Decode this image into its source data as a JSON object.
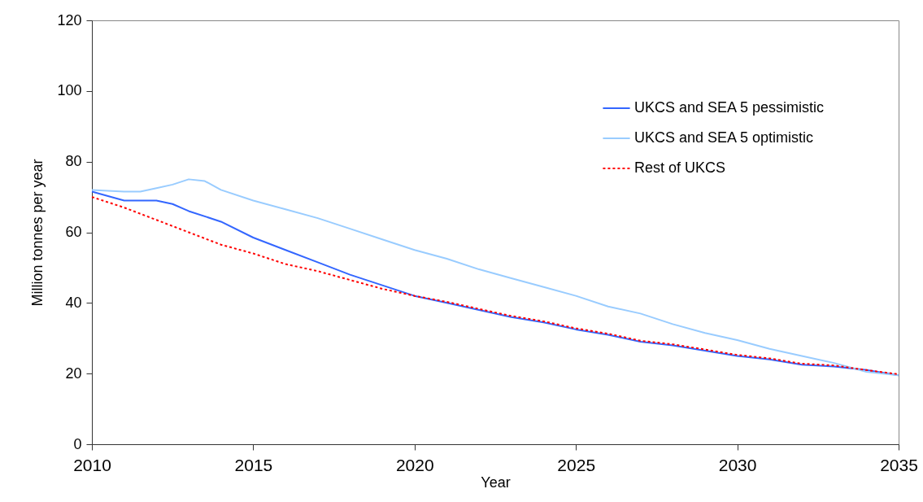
{
  "chart_data": {
    "type": "line",
    "xlabel": "Year",
    "ylabel": "Million tonnes per year",
    "xlim": [
      2010,
      2035
    ],
    "xticks": [
      {
        "value": 2010,
        "label": "2010"
      },
      {
        "value": 2015,
        "label": "2015"
      },
      {
        "value": 2020,
        "label": "2020"
      },
      {
        "value": 2025,
        "label": "2025"
      },
      {
        "value": 2030,
        "label": "2030"
      },
      {
        "value": 2035,
        "label": "2035"
      }
    ],
    "ylim": [
      0,
      120
    ],
    "yticks": [
      0,
      20,
      40,
      60,
      80,
      100,
      120
    ],
    "grid": false,
    "legend": "top right",
    "marker": "none",
    "series": [
      {
        "name": "UKCS and SEA 5 pessimistic",
        "color": "#3366ff",
        "line_style": "solid",
        "x": [
          2010,
          2011,
          2012,
          2012.5,
          2013,
          2014,
          2015,
          2016,
          2017,
          2018,
          2019,
          2020,
          2021,
          2022,
          2023,
          2024,
          2025,
          2026,
          2027,
          2028,
          2029,
          2030,
          2031,
          2032,
          2033,
          2034,
          2035
        ],
        "values": [
          71.5,
          69,
          69,
          68,
          66,
          63,
          58.5,
          55,
          51.5,
          48,
          45,
          42,
          40,
          38,
          36,
          34.5,
          32.5,
          31,
          29,
          28,
          26.5,
          25,
          24,
          22.5,
          22,
          21,
          19.5
        ]
      },
      {
        "name": "UKCS and SEA 5 optimistic",
        "color": "#99ccff",
        "line_style": "solid",
        "x": [
          2010,
          2011,
          2011.5,
          2012,
          2012.5,
          2013,
          2013.5,
          2014,
          2015,
          2016,
          2017,
          2018,
          2019,
          2020,
          2021,
          2022,
          2023,
          2024,
          2025,
          2026,
          2027,
          2028,
          2029,
          2030,
          2031,
          2032,
          2033,
          2034,
          2035
        ],
        "values": [
          72,
          71.5,
          71.5,
          72.5,
          73.5,
          75,
          74.5,
          72,
          69,
          66.5,
          64,
          61,
          58,
          55,
          52.5,
          49.5,
          47,
          44.5,
          42,
          39,
          37,
          34,
          31.5,
          29.5,
          27,
          25,
          23,
          20.5,
          19.5
        ]
      },
      {
        "name": "Rest of UKCS",
        "color": "#ff0000",
        "line_style": "dotted",
        "x": [
          2010,
          2011,
          2012,
          2013,
          2014,
          2015,
          2016,
          2017,
          2018,
          2019,
          2020,
          2021,
          2022,
          2023,
          2024,
          2025,
          2026,
          2027,
          2028,
          2029,
          2030,
          2031,
          2032,
          2033,
          2034,
          2035
        ],
        "values": [
          70,
          67,
          63.5,
          60,
          56.5,
          54,
          51,
          49,
          46.5,
          44,
          42,
          40.3,
          38.3,
          36.3,
          34.8,
          32.8,
          31.3,
          29.3,
          28.3,
          26.8,
          25.3,
          24.3,
          22.8,
          22.3,
          21,
          19.8
        ]
      }
    ]
  }
}
